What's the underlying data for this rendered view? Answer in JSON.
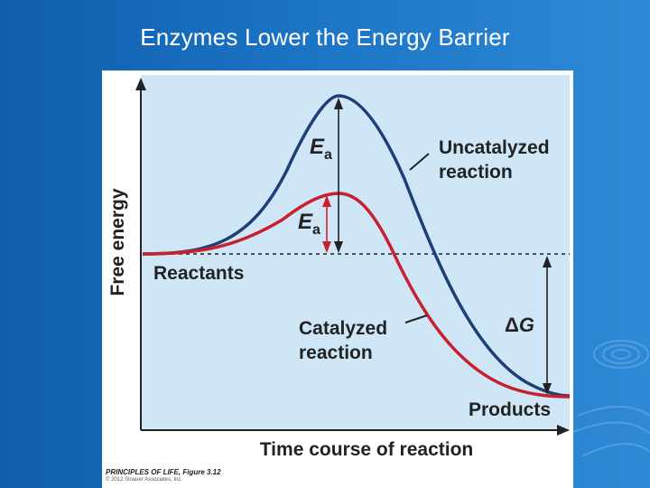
{
  "slide": {
    "title": "Enzymes Lower the Energy Barrier"
  },
  "figure": {
    "y_axis_label": "Free energy",
    "x_axis_label": "Time course of reaction",
    "labels": {
      "uncatalyzed_line1": "Uncatalyzed",
      "uncatalyzed_line2": "reaction",
      "catalyzed_line1": "Catalyzed",
      "catalyzed_line2": "reaction",
      "reactants": "Reactants",
      "products": "Products",
      "ea_upper_main": "E",
      "ea_upper_sub": "a",
      "ea_lower_main": "E",
      "ea_lower_sub": "a",
      "delta_g_symbol": "Δ",
      "delta_g_letter": "G"
    },
    "colors": {
      "panel": "#cfe6f6",
      "uncatalyzed_curve": "#1c3f7a",
      "catalyzed_curve": "#c8202f",
      "axes": "#222222"
    },
    "credit": {
      "source": "PRINCIPLES OF LIFE, Figure 3.12",
      "copyright": "© 2012 Sinauer Associates, Inc."
    }
  }
}
